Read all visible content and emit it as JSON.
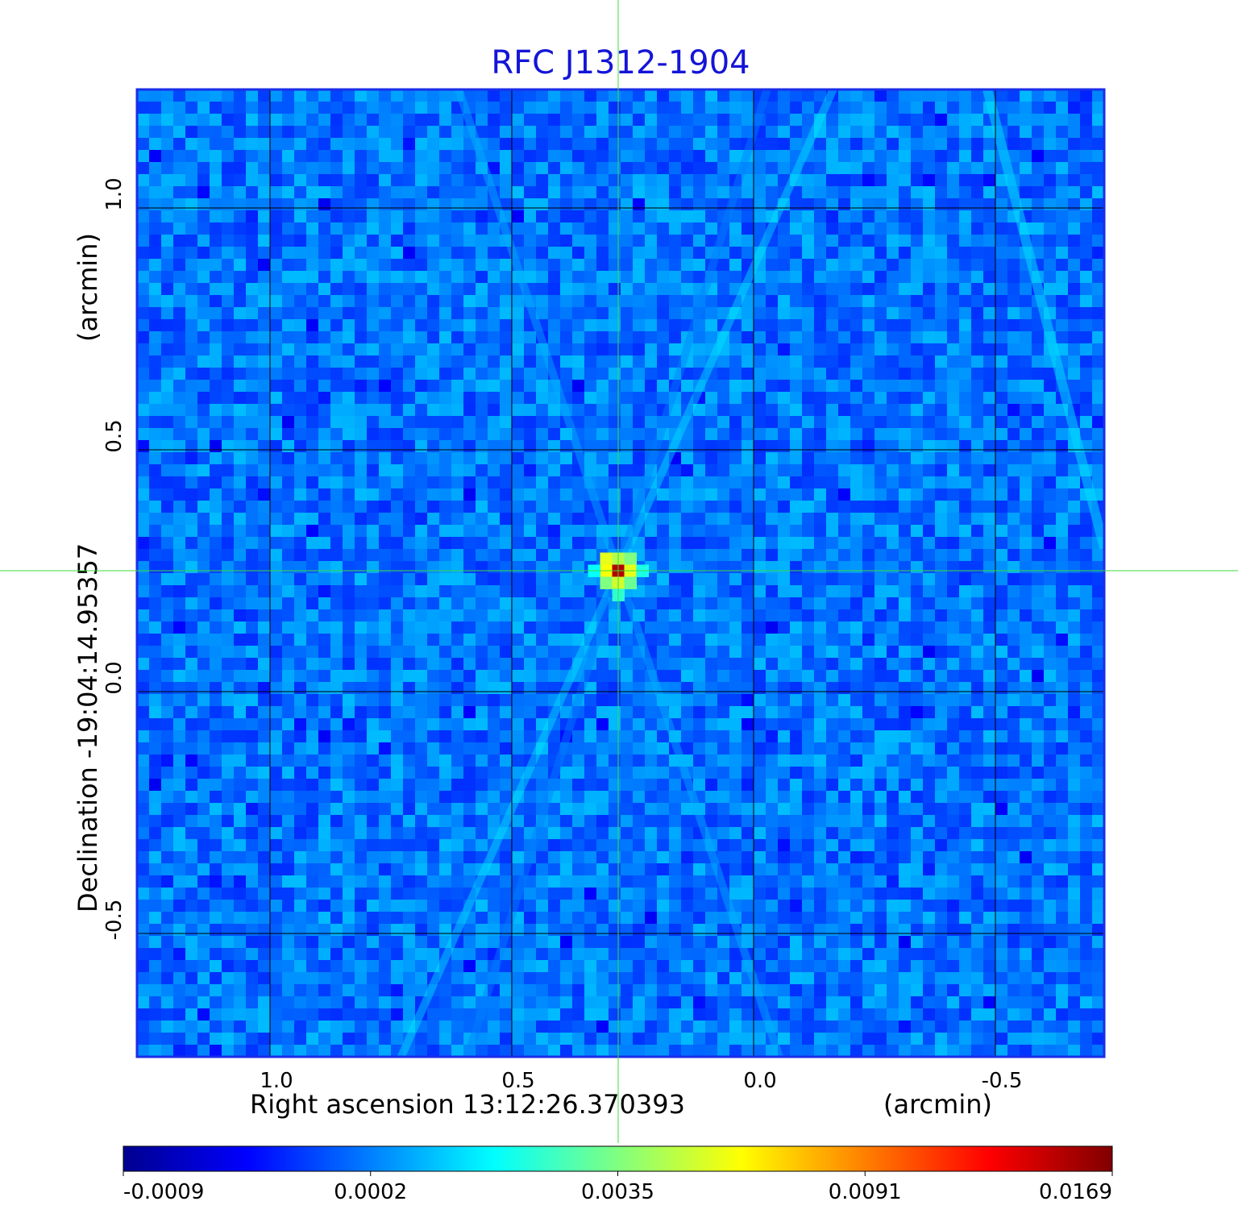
{
  "chart_data": {
    "type": "heatmap",
    "title": "RFC J1312-1904",
    "xlabel": "Right ascension  13:12:26.370393",
    "xunit": "(arcmin)",
    "ylabel": "Declination  -19:04:14.95357",
    "yunit": "(arcmin)",
    "x_range": [
      1.275,
      -0.725
    ],
    "y_range": [
      -0.755,
      1.245
    ],
    "x_ticks": [
      1.0,
      0.5,
      0.0,
      -0.5
    ],
    "x_tick_labels": [
      "1.0",
      "0.5",
      "0.0",
      "-0.5"
    ],
    "y_ticks": [
      1.0,
      0.5,
      0.0,
      -0.5
    ],
    "y_tick_labels": [
      "1.0",
      "0.5",
      "0.0",
      "-0.5"
    ],
    "grid": true,
    "crosshair": {
      "x": 0.28,
      "y": 0.25
    },
    "peak": {
      "x": 0.28,
      "y": 0.25,
      "value": 0.0169
    },
    "colormap": "jet",
    "colorbar_ticks": [
      "-0.0009",
      "0.0002",
      "0.0035",
      "0.0091",
      "0.0169"
    ],
    "colors": {
      "title": "#1414d8",
      "frame": "#1a2ee8",
      "crosshair": "#3ddc3d",
      "grid": "#000000"
    }
  }
}
